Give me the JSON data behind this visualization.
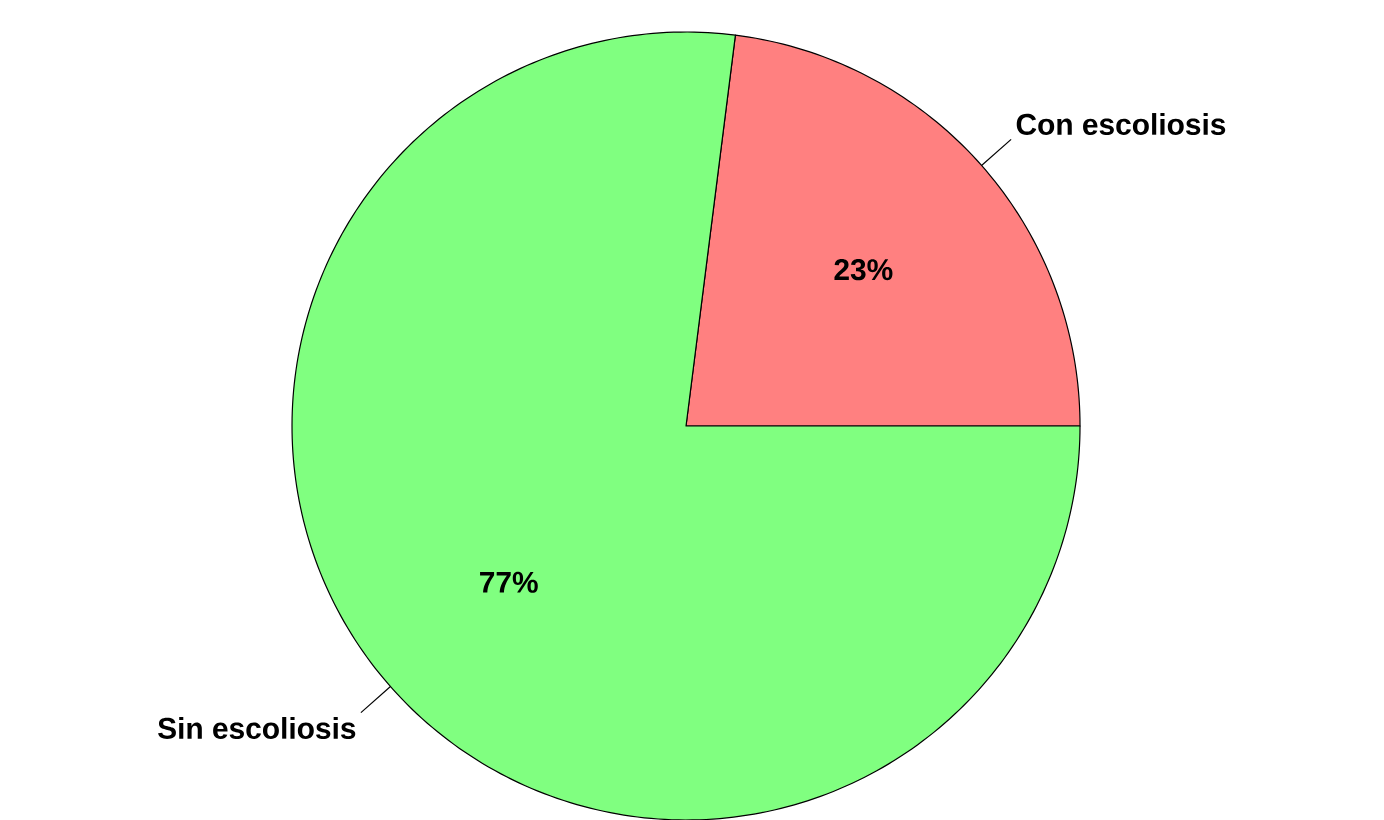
{
  "chart_data": {
    "type": "pie",
    "categories": [
      "Con escoliosis",
      "Sin escoliosis"
    ],
    "values": [
      23,
      77
    ],
    "colors": [
      "#ff8080",
      "#80ff80"
    ],
    "value_labels": [
      "23%",
      "77%"
    ]
  }
}
